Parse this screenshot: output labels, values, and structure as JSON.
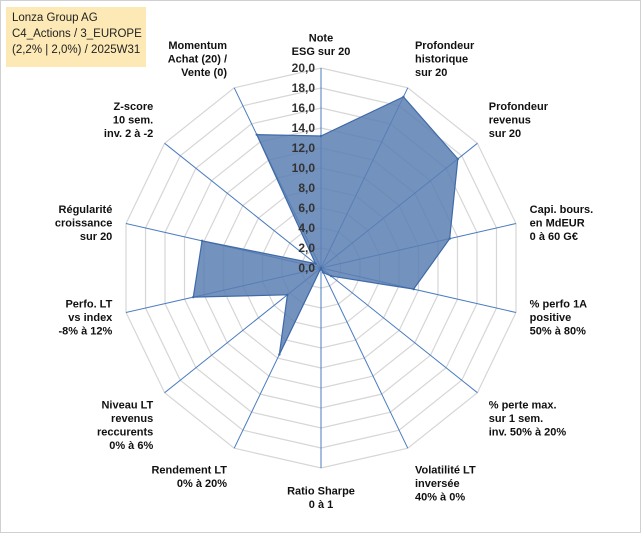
{
  "info": {
    "company": "Lonza Group AG",
    "portfolio": "C4_Actions / 3_EUROPE",
    "meta": "(2,2% | 2,0%) / 2025W31"
  },
  "chart_data": {
    "type": "radar",
    "rlim": [
      0,
      20
    ],
    "tick_step": 2,
    "tick_labels": [
      "0,0",
      "2,0",
      "4,0",
      "6,0",
      "8,0",
      "10,0",
      "12,0",
      "14,0",
      "16,0",
      "18,0",
      "20,0"
    ],
    "grid": true,
    "axes": [
      {
        "label": [
          "Note",
          "ESG sur 20"
        ],
        "value": 13.2
      },
      {
        "label": [
          "Profondeur",
          "historique",
          "sur 20"
        ],
        "value": 19.0
      },
      {
        "label": [
          "Profondeur",
          "revenus",
          "sur 20"
        ],
        "value": 17.5
      },
      {
        "label": [
          "Capi. bours.",
          "en MdEUR",
          "0 à 60 G€"
        ],
        "value": 13.2
      },
      {
        "label": [
          "% perfo 1A",
          "positive",
          "50% à 80%"
        ],
        "value": 9.5
      },
      {
        "label": [
          "% perte max.",
          "sur 1 sem.",
          "inv. 50% à 20%"
        ],
        "value": 1.3
      },
      {
        "label": [
          "Volatilité LT",
          "inversée",
          "40% à 0%"
        ],
        "value": 0.5
      },
      {
        "label": [
          "Ratio Sharpe",
          "0 à 1"
        ],
        "value": 0.0
      },
      {
        "label": [
          "Rendement LT",
          "0% à 20%"
        ],
        "value": 9.6
      },
      {
        "label": [
          "Niveau LT",
          "revenus",
          "reccurents",
          "0% à 6%"
        ],
        "value": 4.3
      },
      {
        "label": [
          "Perfo. LT",
          "vs index",
          "-8% à 12%"
        ],
        "value": 13.1
      },
      {
        "label": [
          "Régularité",
          "croissance",
          "sur 20"
        ],
        "value": 12.2
      },
      {
        "label": [
          "Z-score",
          "10 sem.",
          "inv. 2 à -2"
        ],
        "value": 0.7
      },
      {
        "label": [
          "Momentum",
          "Achat (20) /",
          "Vente (0)"
        ],
        "value": 14.8
      }
    ],
    "colors": {
      "fill": "#5b7fb3",
      "stroke": "#3f6aa8",
      "grid": "#d6d6d6",
      "spoke": "#4a7cc0"
    }
  }
}
